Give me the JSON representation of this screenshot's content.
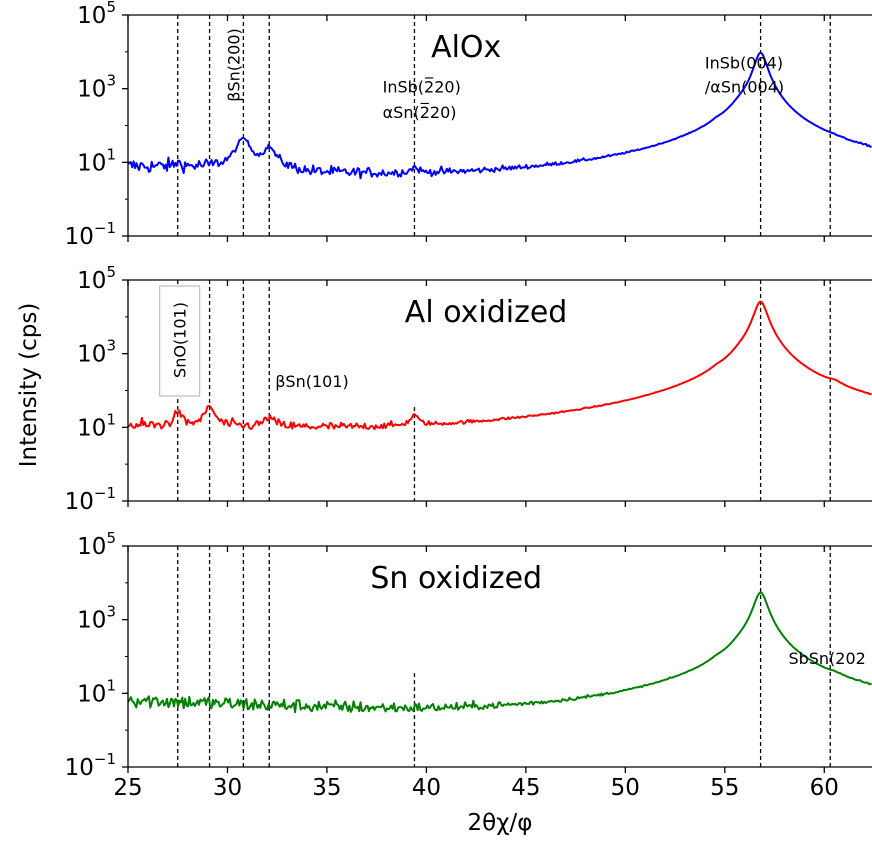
{
  "chart_data": {
    "type": "line",
    "xlabel": "2θχ/φ",
    "ylabel": "Intensity (cps)",
    "xlim": [
      25,
      62.4
    ],
    "x_ticks": [
      25,
      30,
      35,
      40,
      45,
      50,
      55,
      60
    ],
    "y_scale": "log",
    "y_ticks": [
      {
        "base": "10",
        "exp": "−1"
      },
      {
        "base": "10",
        "exp": "1"
      },
      {
        "base": "10",
        "exp": "3"
      },
      {
        "base": "10",
        "exp": "5"
      }
    ],
    "grid": false,
    "reference_lines_x": [
      27.5,
      29.1,
      30.8,
      32.1,
      39.4,
      56.8,
      60.3
    ],
    "panels": [
      {
        "title": "AlOx",
        "color": "#0000ff",
        "ylim_log10": [
          -1,
          5
        ],
        "ref_lines_full": true,
        "annotations": [
          {
            "text": "βSn(200)",
            "x": 30.3,
            "log_y": 3.7,
            "rotate": true
          },
          {
            "text": "InSb(2̅20)",
            "x": 37.8,
            "log_y": 2.9
          },
          {
            "text": "αSn(2̅20)",
            "x": 37.8,
            "log_y": 2.2
          },
          {
            "text": "InSb(004)",
            "x": 54.0,
            "log_y": 3.55
          },
          {
            "text": "/αSn(004)",
            "x": 54.0,
            "log_y": 2.9
          }
        ],
        "peaks": [
          {
            "x": 27.5,
            "height": 2.2,
            "width": 0.15
          },
          {
            "x": 30.8,
            "height": 38,
            "width": 0.32
          },
          {
            "x": 32.1,
            "height": 18,
            "width": 0.28
          },
          {
            "x": 39.4,
            "height": 2.2,
            "width": 0.2
          },
          {
            "x": 54.6,
            "height": 12,
            "width": 0.3
          },
          {
            "x": 55.8,
            "height": 65,
            "width": 0.45
          },
          {
            "x": 56.8,
            "height": 9500,
            "width": 0.28
          },
          {
            "x": 60.3,
            "height": 2.5,
            "width": 0.4
          }
        ],
        "background_log10": [
          [
            25,
            0.85
          ],
          [
            32.5,
            0.75
          ],
          [
            34,
            0.58
          ],
          [
            40,
            0.4
          ],
          [
            50,
            0.2
          ],
          [
            54,
            0.35
          ],
          [
            58,
            0.5
          ],
          [
            62.4,
            0.4
          ]
        ],
        "noise_log10": 0.22
      },
      {
        "title": "Al oxidized",
        "color": "#ff0000",
        "ylim_log10": [
          -1,
          5
        ],
        "ref_lines_full": false,
        "annotations": [
          {
            "text": "SnO(101)",
            "x": 27.6,
            "log_y": 3.7,
            "rotate": true,
            "boxed": true
          },
          {
            "text": "βSn(101)",
            "x": 32.4,
            "log_y": 2.1
          }
        ],
        "peaks": [
          {
            "x": 27.5,
            "height": 16,
            "width": 0.18
          },
          {
            "x": 29.1,
            "height": 26,
            "width": 0.25
          },
          {
            "x": 32.1,
            "height": 8,
            "width": 0.3
          },
          {
            "x": 39.4,
            "height": 11,
            "width": 0.2
          },
          {
            "x": 54.6,
            "height": 40,
            "width": 0.3
          },
          {
            "x": 55.8,
            "height": 130,
            "width": 0.45
          },
          {
            "x": 56.8,
            "height": 26000,
            "width": 0.3
          },
          {
            "x": 60.5,
            "height": 28,
            "width": 0.35
          }
        ],
        "background_log10": [
          [
            25,
            0.95
          ],
          [
            35,
            0.72
          ],
          [
            40,
            0.52
          ],
          [
            50,
            0.28
          ],
          [
            54,
            0.5
          ],
          [
            58,
            0.55
          ],
          [
            62.4,
            0.35
          ]
        ],
        "noise_log10": 0.22
      },
      {
        "title": "Sn oxidized",
        "color": "#008000",
        "ylim_log10": [
          -1,
          5
        ],
        "ref_lines_full": false,
        "annotations": [
          {
            "text": "SbSn(202",
            "x": 58.2,
            "log_y": 1.8
          }
        ],
        "peaks": [
          {
            "x": 54.6,
            "height": 8,
            "width": 0.3
          },
          {
            "x": 55.8,
            "height": 30,
            "width": 0.45
          },
          {
            "x": 56.8,
            "height": 5500,
            "width": 0.3
          },
          {
            "x": 60.5,
            "height": 3,
            "width": 0.35
          }
        ],
        "background_log10": [
          [
            25,
            0.8
          ],
          [
            30,
            0.65
          ],
          [
            35,
            0.52
          ],
          [
            40,
            0.35
          ],
          [
            50,
            0.1
          ],
          [
            54,
            0.1
          ],
          [
            58,
            0.35
          ],
          [
            62.4,
            0.15
          ]
        ],
        "noise_log10": 0.22
      }
    ]
  }
}
